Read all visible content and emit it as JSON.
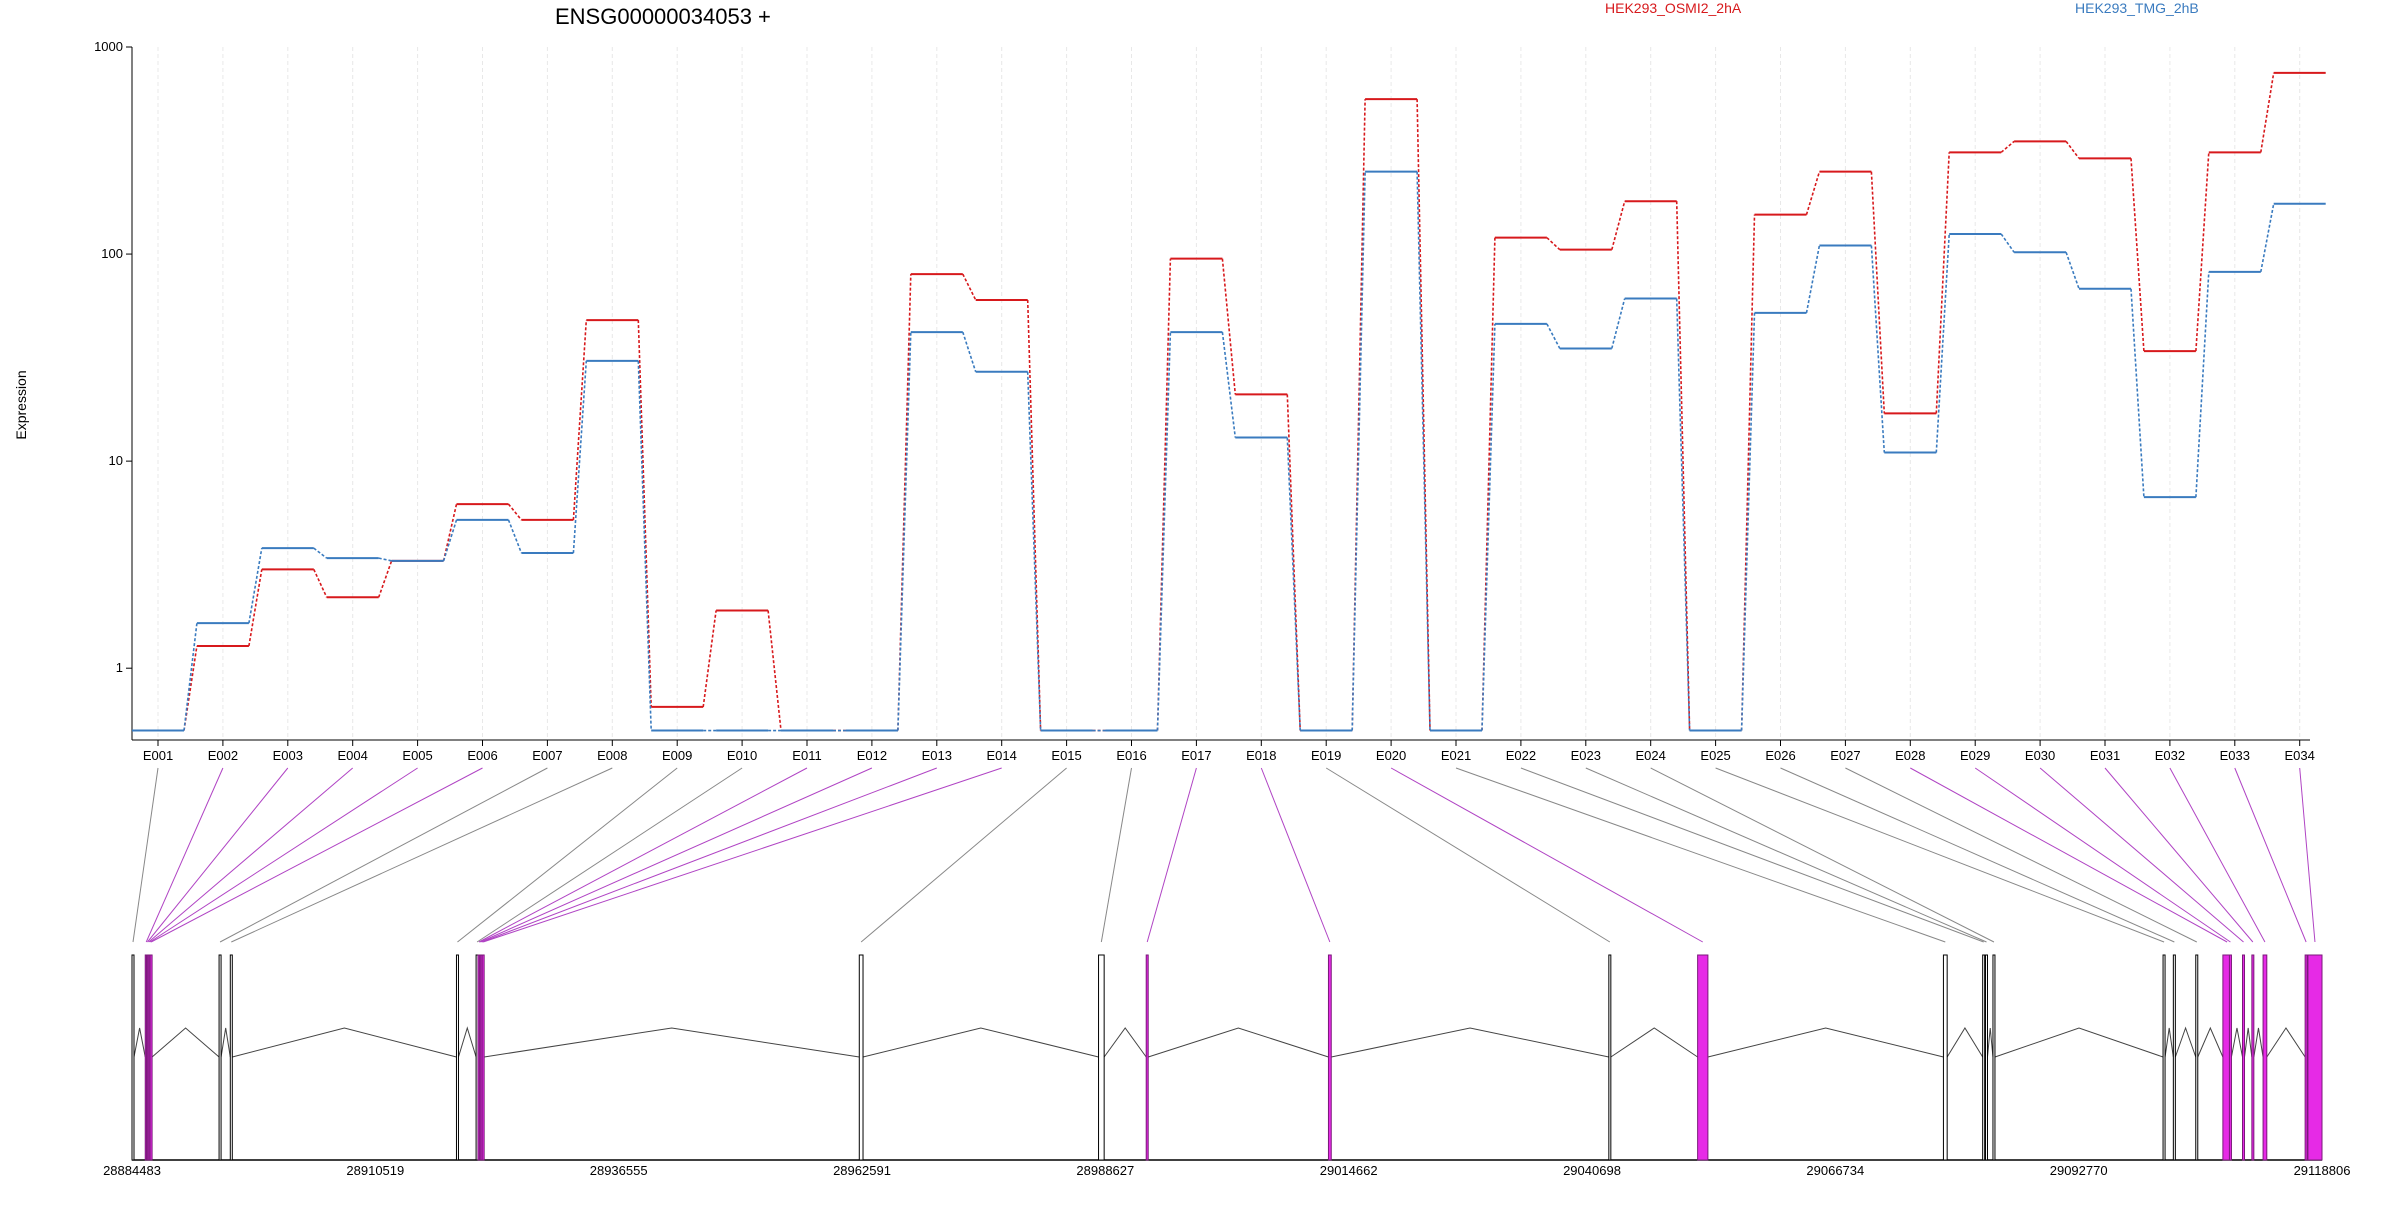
{
  "chart_data": {
    "type": "line",
    "title": "ENSG00000034053 +",
    "ylabel": "Expression",
    "yscale": "log",
    "ylim": [
      0.45,
      1000
    ],
    "yticks": [
      "1",
      "10",
      "100",
      "1000"
    ],
    "grid": true,
    "legend_placement": "top",
    "x_categories": [
      "E001",
      "E002",
      "E003",
      "E004",
      "E005",
      "E006",
      "E007",
      "E008",
      "E009",
      "E010",
      "E011",
      "E012",
      "E013",
      "E014",
      "E015",
      "E016",
      "E017",
      "E018",
      "E019",
      "E020",
      "E021",
      "E022",
      "E023",
      "E024",
      "E025",
      "E026",
      "E027",
      "E028",
      "E029",
      "E030",
      "E031",
      "E032",
      "E033",
      "E034"
    ],
    "series": [
      {
        "name": "HEK293_OSMI2_2hA",
        "color": "#d7191c",
        "values": [
          0.5,
          1.28,
          3.0,
          2.2,
          3.3,
          6.2,
          5.2,
          48,
          0.65,
          1.9,
          0.5,
          0.5,
          80,
          60,
          0.5,
          0.5,
          95,
          21,
          0.5,
          560,
          0.5,
          120,
          105,
          180,
          0.5,
          155,
          250,
          17,
          310,
          350,
          290,
          34,
          310,
          750
        ]
      },
      {
        "name": "HEK293_TMG_2hB",
        "color": "#3a7bbf",
        "values": [
          0.5,
          1.65,
          3.8,
          3.4,
          3.3,
          5.2,
          3.6,
          30.5,
          0.5,
          0.5,
          0.5,
          0.5,
          42,
          27,
          0.5,
          0.5,
          42,
          13,
          0.5,
          250,
          0.5,
          46,
          35,
          61,
          0.5,
          52,
          110,
          11,
          125,
          102,
          68,
          6.7,
          82,
          175
        ]
      }
    ],
    "gene_model": {
      "coordinate_ticks": [
        "28884483",
        "28910519",
        "28936555",
        "28962591",
        "28988627",
        "29014662",
        "29040698",
        "29066734",
        "29092770",
        "29118806"
      ],
      "coord_start": 28884483,
      "coord_end": 29118806,
      "exons": [
        {
          "id": "E001",
          "start": 28884483,
          "end": 28884683,
          "highlight": false
        },
        {
          "id": "E002",
          "start": 28885900,
          "end": 28886000,
          "highlight": true
        },
        {
          "id": "E003",
          "start": 28886030,
          "end": 28886130,
          "highlight": true
        },
        {
          "id": "E004",
          "start": 28886160,
          "end": 28886260,
          "highlight": true
        },
        {
          "id": "E005",
          "start": 28886290,
          "end": 28886390,
          "highlight": true
        },
        {
          "id": "E006",
          "start": 28886420,
          "end": 28886520,
          "highlight": true
        },
        {
          "id": "E007",
          "start": 28893800,
          "end": 28893950,
          "highlight": false
        },
        {
          "id": "E008",
          "start": 28895000,
          "end": 28895200,
          "highlight": false
        },
        {
          "id": "E009",
          "start": 28919200,
          "end": 28919350,
          "highlight": false
        },
        {
          "id": "E010",
          "start": 28921300,
          "end": 28921450,
          "highlight": false
        },
        {
          "id": "E011",
          "start": 28921500,
          "end": 28921600,
          "highlight": true
        },
        {
          "id": "E012",
          "start": 28921650,
          "end": 28921750,
          "highlight": true
        },
        {
          "id": "E013",
          "start": 28921800,
          "end": 28921900,
          "highlight": true
        },
        {
          "id": "E014",
          "start": 28921950,
          "end": 28922050,
          "highlight": true
        },
        {
          "id": "E015",
          "start": 28962300,
          "end": 28962700,
          "highlight": false
        },
        {
          "id": "E016",
          "start": 28987900,
          "end": 28988500,
          "highlight": false
        },
        {
          "id": "E017",
          "start": 28993000,
          "end": 28993200,
          "highlight": true
        },
        {
          "id": "E018",
          "start": 29012500,
          "end": 29012800,
          "highlight": true
        },
        {
          "id": "E019",
          "start": 29042500,
          "end": 29042700,
          "highlight": false
        },
        {
          "id": "E020",
          "start": 29052000,
          "end": 29053100,
          "highlight": true
        },
        {
          "id": "E021",
          "start": 29078300,
          "end": 29078700,
          "highlight": false
        },
        {
          "id": "E022",
          "start": 29082500,
          "end": 29082700,
          "highlight": false
        },
        {
          "id": "E023",
          "start": 29082800,
          "end": 29082950,
          "highlight": false
        },
        {
          "id": "E024",
          "start": 29083600,
          "end": 29083800,
          "highlight": false
        },
        {
          "id": "E025",
          "start": 29101800,
          "end": 29102000,
          "highlight": false
        },
        {
          "id": "E026",
          "start": 29102900,
          "end": 29103100,
          "highlight": false
        },
        {
          "id": "E027",
          "start": 29105300,
          "end": 29105500,
          "highlight": false
        },
        {
          "id": "E028",
          "start": 29108200,
          "end": 29109100,
          "highlight": true
        },
        {
          "id": "E029",
          "start": 29108900,
          "end": 29109100,
          "highlight": true
        },
        {
          "id": "E030",
          "start": 29110300,
          "end": 29110500,
          "highlight": true
        },
        {
          "id": "E031",
          "start": 29111300,
          "end": 29111500,
          "highlight": true
        },
        {
          "id": "E032",
          "start": 29112500,
          "end": 29112900,
          "highlight": true
        },
        {
          "id": "E033",
          "start": 29117000,
          "end": 29117200,
          "highlight": true
        },
        {
          "id": "E034",
          "start": 29117300,
          "end": 29118806,
          "highlight": true
        }
      ],
      "highlight_color": "#e62ae6",
      "line_color_normal": "#888888",
      "line_color_highlight": "#b044c4"
    }
  }
}
